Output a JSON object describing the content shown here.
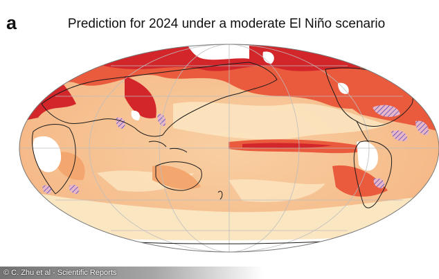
{
  "panel_label": "a",
  "title": "Prediction for 2024 under a moderate El Niño scenario",
  "credit": "© C. Zhu et al - Scientific Reports",
  "map": {
    "projection": "Mollweide",
    "colors": {
      "ocean_base": "#f7c79a",
      "pale": "#fbe6c2",
      "warm": "#f4a66f",
      "hot": "#ea5a3d",
      "hottest": "#d3262b",
      "blank": "#ffffff",
      "coastline": "#1a1a1a",
      "hatch": "#3b3bb0"
    }
  }
}
